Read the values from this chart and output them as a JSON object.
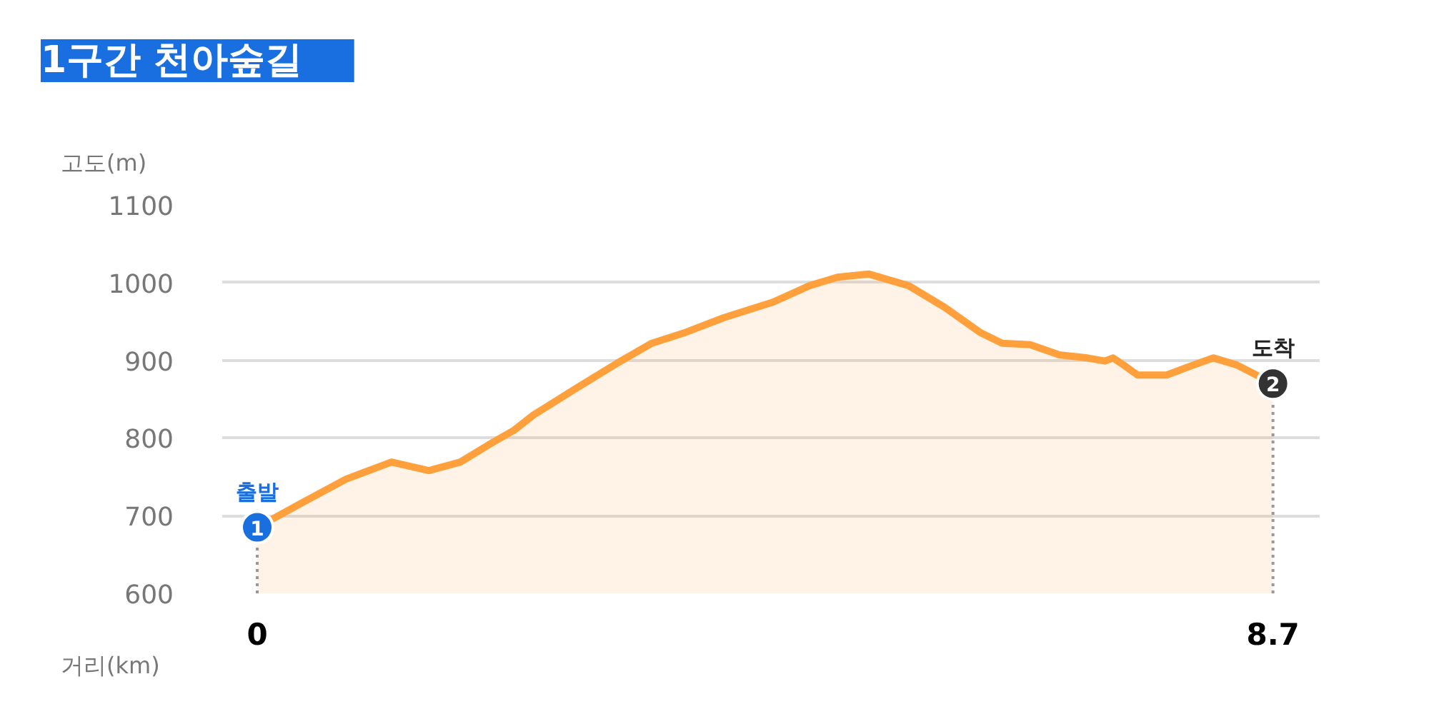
{
  "chart_data": {
    "type": "area",
    "title": "1구간 천아숲길",
    "xlabel": "거리(km)",
    "ylabel": "고도(m)",
    "x": [
      0,
      0.39,
      0.76,
      1.15,
      1.47,
      1.74,
      1.98,
      2.2,
      2.37,
      2.71,
      3.08,
      3.38,
      3.67,
      4.0,
      4.42,
      4.73,
      4.97,
      5.24,
      5.58,
      5.89,
      6.19,
      6.38,
      6.62,
      6.87,
      7.11,
      7.26,
      7.33,
      7.42,
      7.54,
      7.79,
      8.02,
      8.19,
      8.39,
      8.7
    ],
    "series": [
      {
        "color": "#ffa03c",
        "values": [
          685,
          717,
          747,
          769,
          758,
          769,
          791,
          810,
          830,
          862,
          896,
          922,
          936,
          955,
          975,
          996,
          1007,
          1011,
          996,
          968,
          936,
          922,
          920,
          907,
          903,
          899,
          903,
          894,
          881,
          881,
          894,
          903,
          894,
          870
        ]
      }
    ],
    "xlim": [
      -0.3,
      9.1
    ],
    "xticks": [
      0,
      8.7
    ],
    "ylim": [
      600,
      1100
    ],
    "yticks": [
      600,
      700,
      800,
      900,
      1000,
      1100
    ],
    "grid": "y",
    "ref_lines": [
      {
        "axis": "x",
        "value": 0,
        "line_style": "dotted",
        "color": "#999999"
      },
      {
        "axis": "x",
        "value": 8.7,
        "line_style": "dotted",
        "color": "#999999"
      }
    ],
    "annotations": [
      "출발",
      "1",
      "도착",
      "2"
    ]
  }
}
